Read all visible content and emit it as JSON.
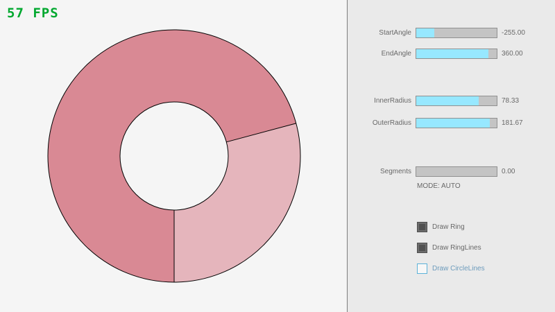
{
  "fps_label": "57 FPS",
  "colors": {
    "fps_green": "#00a82f",
    "ring_dark": "#d98994",
    "ring_light": "#e5b5bc",
    "ring_line": "#000000",
    "slider_fill": "#97e8ff"
  },
  "panel": {
    "sliders": [
      {
        "label": "StartAngle",
        "value": "-255.00",
        "fraction": 0.22
      },
      {
        "label": "EndAngle",
        "value": "360.00",
        "fraction": 0.9
      },
      {
        "label": "InnerRadius",
        "value": "78.33",
        "fraction": 0.78
      },
      {
        "label": "OuterRadius",
        "value": "181.67",
        "fraction": 0.91
      },
      {
        "label": "Segments",
        "value": "0.00",
        "fraction": 0.0
      }
    ],
    "mode_text": "MODE: AUTO",
    "checkboxes": [
      {
        "label": "Draw Ring",
        "state": "checked"
      },
      {
        "label": "Draw RingLines",
        "state": "checked"
      },
      {
        "label": "Draw CircleLines",
        "state": "focused"
      }
    ]
  }
}
